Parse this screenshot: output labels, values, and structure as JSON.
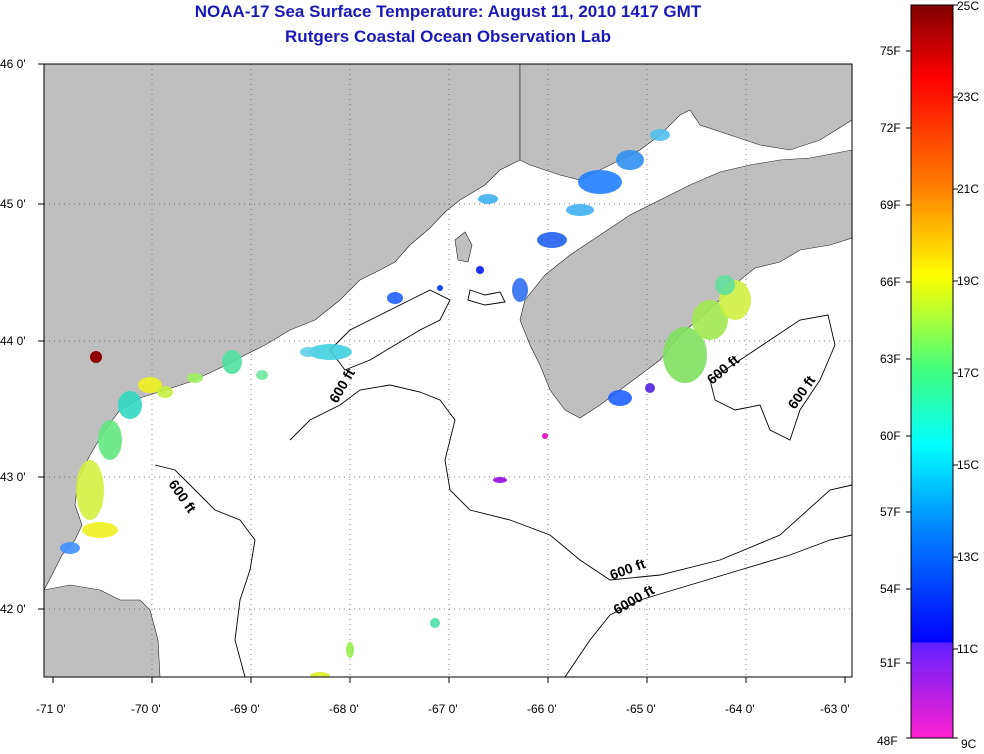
{
  "title": "NOAA-17 Sea Surface Temperature:  August 11, 2010 1417 GMT",
  "subtitle": "Rutgers Coastal Ocean Observation Lab",
  "map": {
    "lon_ticks": [
      "-71 0'",
      "-70 0'",
      "-69 0'",
      "-68 0'",
      "-67 0'",
      "-66 0'",
      "-65 0'",
      "-64 0'",
      "-63 0'"
    ],
    "lat_ticks": [
      "46 0'",
      "45 0'",
      "44 0'",
      "43 0'",
      "42 0'"
    ],
    "lon_range": [
      -71,
      -63
    ],
    "lat_range": [
      41.5,
      46
    ],
    "contour_labels": [
      "600 ft",
      "600 ft",
      "600 ft",
      "600 ft",
      "600 ft",
      "6000 ft"
    ],
    "land_color": "#bfbfbf",
    "ocean_color": "#ffffff"
  },
  "colorbar": {
    "celsius": [
      "25C",
      "23C",
      "21C",
      "19C",
      "17C",
      "15C",
      "13C",
      "11C",
      "9C"
    ],
    "fahrenheit": [
      "75F",
      "72F",
      "69F",
      "66F",
      "63F",
      "60F",
      "57F",
      "54F",
      "51F",
      "48F"
    ]
  }
}
